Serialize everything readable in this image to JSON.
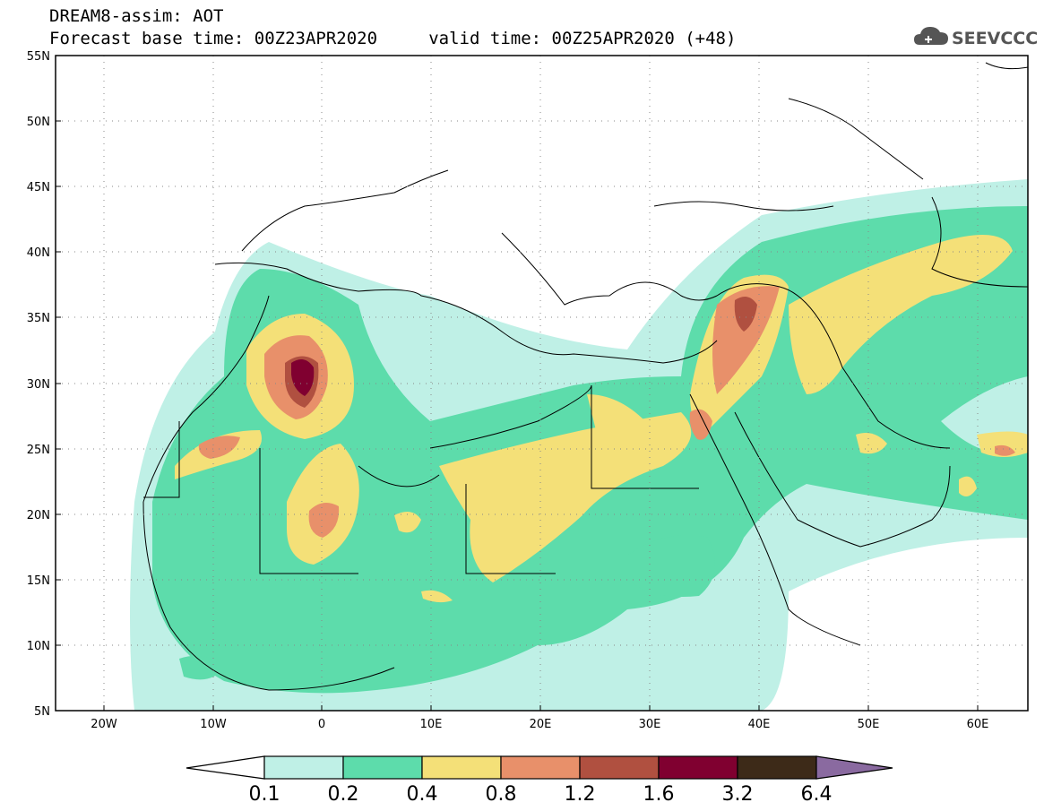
{
  "header": {
    "line1": "DREAM8-assim: AOT",
    "line2": "Forecast base time: 00Z23APR2020     valid time: 00Z25APR2020 (+48)"
  },
  "logo": {
    "text": "SEEVCCC",
    "icon": "cloud-icon"
  },
  "map": {
    "lat_labels": [
      "55N",
      "50N",
      "45N",
      "40N",
      "35N",
      "30N",
      "25N",
      "20N",
      "15N",
      "10N",
      "5N"
    ],
    "lon_labels": [
      "20W",
      "10W",
      "0",
      "10E",
      "20E",
      "30E",
      "40E",
      "50E",
      "60E"
    ],
    "lat_range": [
      5,
      55
    ],
    "lon_range": [
      -25,
      65
    ],
    "gridlines": "dotted"
  },
  "colorbar": {
    "labels": [
      "0.1",
      "0.2",
      "0.4",
      "0.8",
      "1.2",
      "1.6",
      "3.2",
      "6.4"
    ],
    "colors": [
      "#ffffff",
      "#bff0e6",
      "#5ddcab",
      "#f4e078",
      "#e8906a",
      "#b05040",
      "#800030",
      "#3d2a18",
      "#8a6aa0"
    ]
  }
}
